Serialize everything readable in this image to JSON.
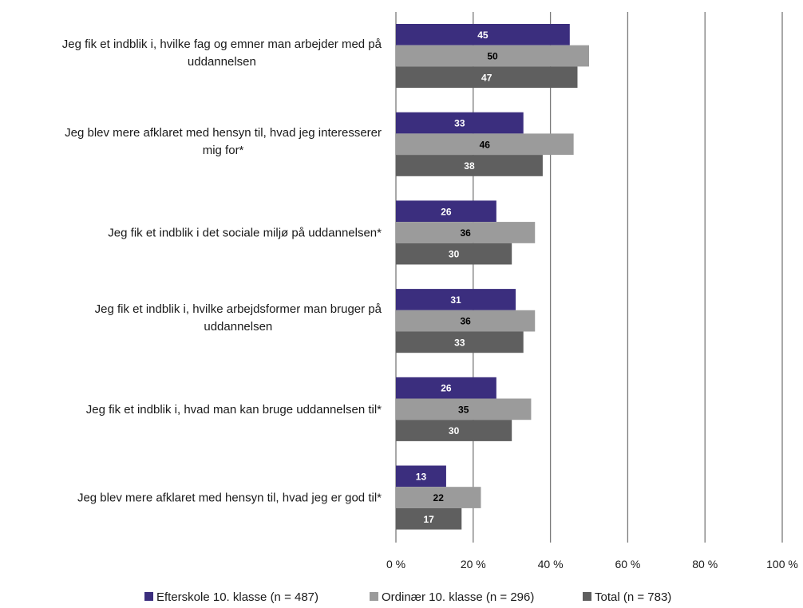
{
  "chart_data": {
    "type": "bar",
    "orientation": "horizontal",
    "categories": [
      [
        "Jeg fik et indblik i, hvilke fag og emner man arbejder med på",
        "uddannelsen"
      ],
      [
        "Jeg blev mere afklaret med hensyn til, hvad jeg interesserer",
        "mig for*"
      ],
      [
        "Jeg fik et indblik i det sociale miljø på uddannelsen*"
      ],
      [
        "Jeg fik et indblik i, hvilke arbejdsformer man bruger på",
        "uddannelsen"
      ],
      [
        "Jeg fik et indblik i, hvad man kan bruge uddannelsen til*"
      ],
      [
        "Jeg blev mere afklaret med hensyn til, hvad jeg er god til*"
      ]
    ],
    "series": [
      {
        "name": "Efterskole 10. klasse (n = 487)",
        "color": "#3b2e7e",
        "label_color": "#ffffff",
        "values": [
          45,
          33,
          26,
          31,
          26,
          13
        ]
      },
      {
        "name": "Ordinær 10. klasse (n = 296)",
        "color": "#9b9b9b",
        "label_color": "#000000",
        "values": [
          50,
          46,
          36,
          36,
          35,
          22
        ]
      },
      {
        "name": "Total (n = 783)",
        "color": "#5f5f5f",
        "label_color": "#ffffff",
        "values": [
          47,
          38,
          30,
          33,
          30,
          17
        ]
      }
    ],
    "xlim": [
      0,
      100
    ],
    "xticks": [
      0,
      20,
      40,
      60,
      80,
      100
    ],
    "tick_labels": [
      "0 %",
      "20 %",
      "40 %",
      "60 %",
      "80 %",
      "100 %"
    ],
    "grid": true,
    "legend_position": "bottom"
  }
}
